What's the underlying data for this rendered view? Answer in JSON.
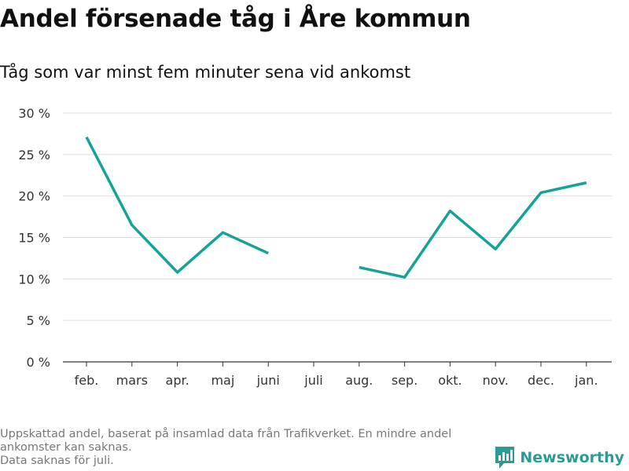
{
  "header": {
    "title": "Andel försenade tåg i Åre kommun",
    "subtitle": "Tåg som var minst fem minuter sena vid ankomst"
  },
  "footnote": {
    "line1": "Uppskattad andel, baserat på insamlad data från Trafikverket. En mindre andel ankomster kan saknas.",
    "line2": "Data saknas för juli."
  },
  "brand": {
    "name": "Newsworthy",
    "color": "#2a9c94"
  },
  "chart_data": {
    "type": "line",
    "categories": [
      "feb.",
      "mars",
      "apr.",
      "maj",
      "juni",
      "juli",
      "aug.",
      "sep.",
      "okt.",
      "nov.",
      "dec.",
      "jan."
    ],
    "series": [
      {
        "values": [
          27.1,
          16.5,
          10.8,
          15.6,
          13.1,
          null,
          11.4,
          10.2,
          18.2,
          13.6,
          20.4,
          21.6
        ]
      }
    ],
    "ylim": [
      0,
      30
    ],
    "yticks": [
      0,
      5,
      10,
      15,
      20,
      25,
      30
    ],
    "ytick_labels": [
      "0 %",
      "5 %",
      "10 %",
      "15 %",
      "20 %",
      "25 %",
      "30 %"
    ],
    "line_color": "#14a39a",
    "grid": true
  }
}
